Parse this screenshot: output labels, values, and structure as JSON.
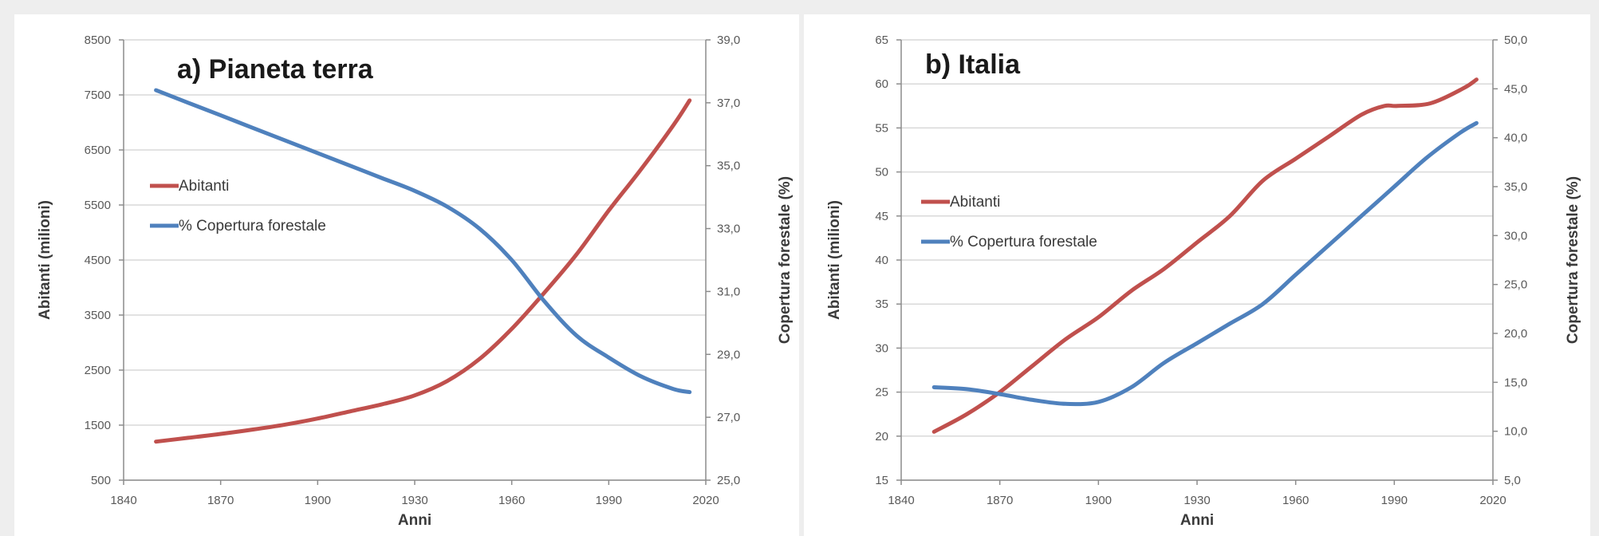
{
  "chart_data": [
    {
      "type": "line",
      "title": "a) Pianeta terra",
      "xlabel": "Anni",
      "ylabel": "Abitanti (milioni)",
      "ylabel_right": "Copertura forestale (%)",
      "xlim": [
        1840,
        2020
      ],
      "ylim": [
        500,
        8500
      ],
      "ylim_right": [
        25.0,
        39.0
      ],
      "x_ticks": [
        "1840",
        "1870",
        "1900",
        "1930",
        "1960",
        "1990",
        "2020"
      ],
      "y_ticks": [
        "500",
        "1500",
        "2500",
        "3500",
        "4500",
        "5500",
        "6500",
        "7500",
        "8500"
      ],
      "y_ticks_right": [
        "25,0",
        "27,0",
        "29,0",
        "31,0",
        "33,0",
        "35,0",
        "37,0",
        "39,0"
      ],
      "grid": true,
      "legend_position": "left",
      "series": [
        {
          "name": "Abitanti",
          "axis": "left",
          "color": "#c0504d",
          "x": [
            1850,
            1860,
            1870,
            1880,
            1890,
            1900,
            1910,
            1920,
            1930,
            1940,
            1950,
            1960,
            1970,
            1980,
            1990,
            2000,
            2010,
            2015
          ],
          "y": [
            1200,
            1270,
            1340,
            1420,
            1510,
            1620,
            1750,
            1880,
            2040,
            2300,
            2700,
            3250,
            3900,
            4600,
            5400,
            6150,
            6950,
            7400
          ]
        },
        {
          "name": "% Copertura forestale",
          "axis": "right",
          "color": "#4f81bd",
          "x": [
            1850,
            1860,
            1870,
            1880,
            1890,
            1900,
            1910,
            1920,
            1930,
            1940,
            1950,
            1960,
            1970,
            1980,
            1990,
            2000,
            2010,
            2015
          ],
          "y": [
            37.4,
            37.0,
            36.6,
            36.2,
            35.8,
            35.4,
            35.0,
            34.6,
            34.2,
            33.7,
            33.0,
            32.0,
            30.7,
            29.6,
            28.9,
            28.3,
            27.9,
            27.8
          ]
        }
      ]
    },
    {
      "type": "line",
      "title": "b) Italia",
      "xlabel": "Anni",
      "ylabel": "Abitanti (milioni)",
      "ylabel_right": "Copertura forestale (%)",
      "xlim": [
        1840,
        2020
      ],
      "ylim": [
        15,
        65
      ],
      "ylim_right": [
        5.0,
        50.0
      ],
      "x_ticks": [
        "1840",
        "1870",
        "1900",
        "1930",
        "1960",
        "1990",
        "2020"
      ],
      "y_ticks": [
        "15",
        "20",
        "25",
        "30",
        "35",
        "40",
        "45",
        "50",
        "55",
        "60",
        "65"
      ],
      "y_ticks_right": [
        "5,0",
        "10,0",
        "15,0",
        "20,0",
        "25,0",
        "30,0",
        "35,0",
        "40,0",
        "45,0",
        "50,0"
      ],
      "grid": true,
      "legend_position": "left",
      "series": [
        {
          "name": "Abitanti",
          "axis": "left",
          "color": "#c0504d",
          "x": [
            1850,
            1860,
            1870,
            1880,
            1890,
            1900,
            1910,
            1920,
            1930,
            1940,
            1950,
            1960,
            1970,
            1980,
            1987,
            1991,
            2001,
            2011,
            2015
          ],
          "y": [
            20.5,
            22.5,
            25.0,
            28.0,
            31.0,
            33.5,
            36.5,
            39.0,
            42.0,
            45.0,
            49.0,
            51.5,
            54.0,
            56.5,
            57.5,
            57.5,
            57.8,
            59.5,
            60.5
          ]
        },
        {
          "name": "% Copertura forestale",
          "axis": "right",
          "color": "#4f81bd",
          "x": [
            1850,
            1860,
            1870,
            1880,
            1890,
            1900,
            1910,
            1920,
            1930,
            1940,
            1950,
            1960,
            1970,
            1980,
            1990,
            2000,
            2010,
            2015
          ],
          "y": [
            14.5,
            14.3,
            13.8,
            13.2,
            12.8,
            13.0,
            14.5,
            17.0,
            19.0,
            21.0,
            23.0,
            26.0,
            29.0,
            32.0,
            35.0,
            38.0,
            40.5,
            41.5
          ]
        }
      ]
    }
  ]
}
